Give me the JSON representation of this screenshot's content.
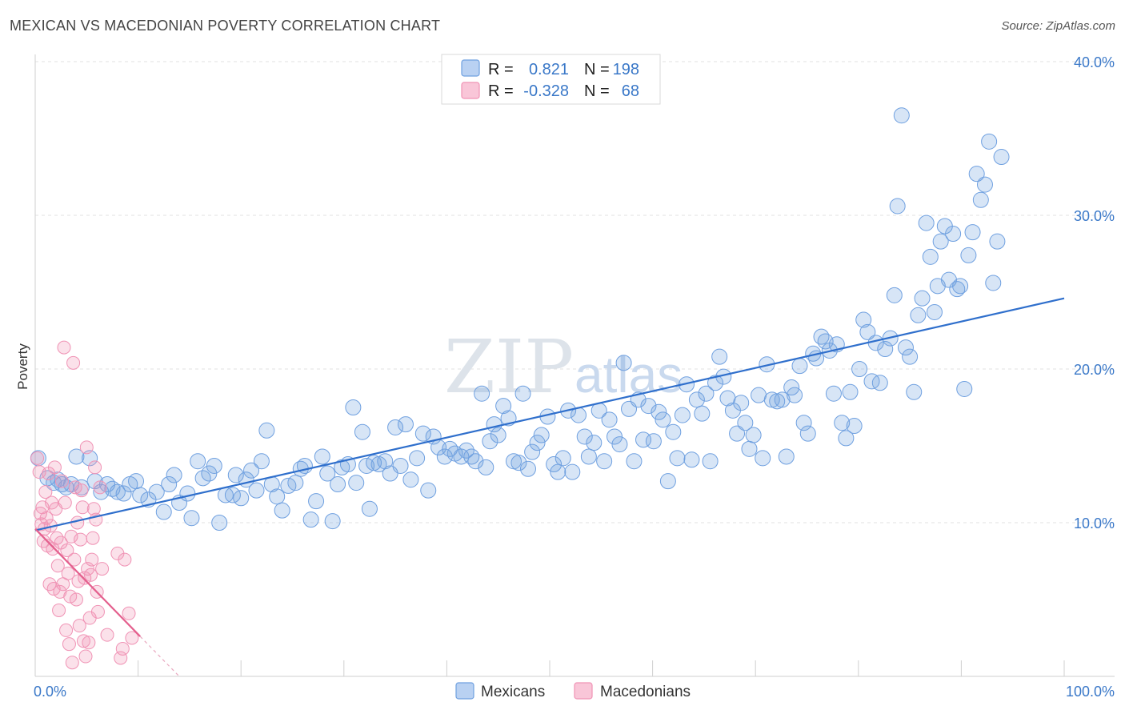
{
  "header": {
    "title": "MEXICAN VS MACEDONIAN POVERTY CORRELATION CHART",
    "source": "Source: ZipAtlas.com"
  },
  "watermark": {
    "zip": "ZIP",
    "atlas": "atlas"
  },
  "legend_top": {
    "rows": [
      {
        "r_label": "R =",
        "r_value": "0.821",
        "n_label": "N =",
        "n_value": "198",
        "color": "#6fa0e0"
      },
      {
        "r_label": "R =",
        "r_value": "-0.328",
        "n_label": "N =",
        "n_value": "68",
        "color": "#f093b5"
      }
    ]
  },
  "legend_bottom": {
    "items": [
      {
        "label": "Mexicans",
        "color": "#6fa0e0"
      },
      {
        "label": "Macedonians",
        "color": "#f093b5"
      }
    ]
  },
  "chart_data": {
    "type": "scatter",
    "title": "MEXICAN VS MACEDONIAN POVERTY CORRELATION CHART",
    "xlabel": "",
    "ylabel": "Poverty",
    "xlim": [
      0,
      100
    ],
    "ylim": [
      0,
      40
    ],
    "x_tick_labels": [
      {
        "value": 0,
        "label": "0.0%"
      },
      {
        "value": 100,
        "label": "100.0%"
      }
    ],
    "y_tick_labels": [
      {
        "value": 10,
        "label": "10.0%"
      },
      {
        "value": 20,
        "label": "20.0%"
      },
      {
        "value": 30,
        "label": "30.0%"
      },
      {
        "value": 40,
        "label": "40.0%"
      }
    ],
    "grid": true,
    "legend_position": "top-center",
    "series": [
      {
        "name": "Mexicans",
        "color": "#6fa0e0",
        "trend": {
          "x": [
            0,
            100
          ],
          "y": [
            9.5,
            24.6
          ]
        },
        "points": [
          [
            0.3,
            14.2
          ],
          [
            1.2,
            12.9
          ],
          [
            1.8,
            12.6
          ],
          [
            2.2,
            12.8
          ],
          [
            2.6,
            12.5
          ],
          [
            3.0,
            12.3
          ],
          [
            3.5,
            12.5
          ],
          [
            4.0,
            14.3
          ],
          [
            4.5,
            12.3
          ],
          [
            5.3,
            14.2
          ],
          [
            5.8,
            12.7
          ],
          [
            6.4,
            12.0
          ],
          [
            7.0,
            12.5
          ],
          [
            7.5,
            12.2
          ],
          [
            8.0,
            12.0
          ],
          [
            8.6,
            11.9
          ],
          [
            9.2,
            12.5
          ],
          [
            9.8,
            12.7
          ],
          [
            10.2,
            11.8
          ],
          [
            11.0,
            11.5
          ],
          [
            11.8,
            12.0
          ],
          [
            12.5,
            10.7
          ],
          [
            13.0,
            12.5
          ],
          [
            13.5,
            13.1
          ],
          [
            14.0,
            11.3
          ],
          [
            14.8,
            11.9
          ],
          [
            15.2,
            10.3
          ],
          [
            15.8,
            14.0
          ],
          [
            16.3,
            12.9
          ],
          [
            16.9,
            13.2
          ],
          [
            17.4,
            13.7
          ],
          [
            17.9,
            10.0
          ],
          [
            18.5,
            11.8
          ],
          [
            19.2,
            11.8
          ],
          [
            19.5,
            13.1
          ],
          [
            20.0,
            11.6
          ],
          [
            20.5,
            12.8
          ],
          [
            21.0,
            13.4
          ],
          [
            21.5,
            12.1
          ],
          [
            22.0,
            14.0
          ],
          [
            22.5,
            16.0
          ],
          [
            23.0,
            12.5
          ],
          [
            23.5,
            11.7
          ],
          [
            24.0,
            10.8
          ],
          [
            24.6,
            12.4
          ],
          [
            25.3,
            12.6
          ],
          [
            25.8,
            13.5
          ],
          [
            26.2,
            13.7
          ],
          [
            26.8,
            10.2
          ],
          [
            27.3,
            11.4
          ],
          [
            27.9,
            14.3
          ],
          [
            28.4,
            13.2
          ],
          [
            28.9,
            10.1
          ],
          [
            29.4,
            12.5
          ],
          [
            29.8,
            13.6
          ],
          [
            30.4,
            13.8
          ],
          [
            30.9,
            17.5
          ],
          [
            31.2,
            12.6
          ],
          [
            31.8,
            15.9
          ],
          [
            32.2,
            13.7
          ],
          [
            32.5,
            10.9
          ],
          [
            32.9,
            13.9
          ],
          [
            33.4,
            13.8
          ],
          [
            34.0,
            14.0
          ],
          [
            34.5,
            13.2
          ],
          [
            35.0,
            16.2
          ],
          [
            35.5,
            13.7
          ],
          [
            36.0,
            16.4
          ],
          [
            36.5,
            12.8
          ],
          [
            37.1,
            14.2
          ],
          [
            37.7,
            15.8
          ],
          [
            38.2,
            12.1
          ],
          [
            38.7,
            15.6
          ],
          [
            39.2,
            14.9
          ],
          [
            39.8,
            14.3
          ],
          [
            40.3,
            14.8
          ],
          [
            40.8,
            14.5
          ],
          [
            41.4,
            14.3
          ],
          [
            41.9,
            14.7
          ],
          [
            42.4,
            14.3
          ],
          [
            42.8,
            14.0
          ],
          [
            43.4,
            18.4
          ],
          [
            43.8,
            13.6
          ],
          [
            44.2,
            15.3
          ],
          [
            44.6,
            16.4
          ],
          [
            45.0,
            15.7
          ],
          [
            45.5,
            17.6
          ],
          [
            46.0,
            16.8
          ],
          [
            46.5,
            14.0
          ],
          [
            47.0,
            13.9
          ],
          [
            47.4,
            18.4
          ],
          [
            47.9,
            13.5
          ],
          [
            48.3,
            14.6
          ],
          [
            48.8,
            15.2
          ],
          [
            49.2,
            15.7
          ],
          [
            49.8,
            16.9
          ],
          [
            50.4,
            13.8
          ],
          [
            50.8,
            13.3
          ],
          [
            51.3,
            14.2
          ],
          [
            51.8,
            17.3
          ],
          [
            52.2,
            13.3
          ],
          [
            52.8,
            17.0
          ],
          [
            53.4,
            15.6
          ],
          [
            53.8,
            14.3
          ],
          [
            54.3,
            15.2
          ],
          [
            54.8,
            17.3
          ],
          [
            55.3,
            14.0
          ],
          [
            55.8,
            16.7
          ],
          [
            56.3,
            15.6
          ],
          [
            56.8,
            15.1
          ],
          [
            57.2,
            20.4
          ],
          [
            57.7,
            17.4
          ],
          [
            58.2,
            14.0
          ],
          [
            58.6,
            18.0
          ],
          [
            59.1,
            15.4
          ],
          [
            59.6,
            17.6
          ],
          [
            60.1,
            15.3
          ],
          [
            60.6,
            17.2
          ],
          [
            61.0,
            16.7
          ],
          [
            61.5,
            12.7
          ],
          [
            62.0,
            15.9
          ],
          [
            62.4,
            14.2
          ],
          [
            62.9,
            17.0
          ],
          [
            63.3,
            19.0
          ],
          [
            63.8,
            14.1
          ],
          [
            64.3,
            18.0
          ],
          [
            64.8,
            17.1
          ],
          [
            65.2,
            18.4
          ],
          [
            65.6,
            14.0
          ],
          [
            66.1,
            19.1
          ],
          [
            66.5,
            20.8
          ],
          [
            66.9,
            19.5
          ],
          [
            67.3,
            18.1
          ],
          [
            67.8,
            17.3
          ],
          [
            68.2,
            15.8
          ],
          [
            68.6,
            17.8
          ],
          [
            69.0,
            16.5
          ],
          [
            69.4,
            14.8
          ],
          [
            69.8,
            15.7
          ],
          [
            70.3,
            18.3
          ],
          [
            70.7,
            14.2
          ],
          [
            71.1,
            20.3
          ],
          [
            71.6,
            18.0
          ],
          [
            72.1,
            17.9
          ],
          [
            72.6,
            18.0
          ],
          [
            73.0,
            14.3
          ],
          [
            73.5,
            18.8
          ],
          [
            73.8,
            18.3
          ],
          [
            74.3,
            20.2
          ],
          [
            74.7,
            16.5
          ],
          [
            75.1,
            15.8
          ],
          [
            75.6,
            21.0
          ],
          [
            75.9,
            20.7
          ],
          [
            76.4,
            22.1
          ],
          [
            76.8,
            21.8
          ],
          [
            77.2,
            21.2
          ],
          [
            77.6,
            18.4
          ],
          [
            77.9,
            21.6
          ],
          [
            78.4,
            16.5
          ],
          [
            78.8,
            15.5
          ],
          [
            79.2,
            18.5
          ],
          [
            79.6,
            16.3
          ],
          [
            80.1,
            20.0
          ],
          [
            80.5,
            23.2
          ],
          [
            80.9,
            22.4
          ],
          [
            81.3,
            19.2
          ],
          [
            81.7,
            21.7
          ],
          [
            82.1,
            19.1
          ],
          [
            82.6,
            21.3
          ],
          [
            83.1,
            22.0
          ],
          [
            83.5,
            24.8
          ],
          [
            83.8,
            30.6
          ],
          [
            84.2,
            36.5
          ],
          [
            84.6,
            21.4
          ],
          [
            85.0,
            20.8
          ],
          [
            85.4,
            18.5
          ],
          [
            85.8,
            23.5
          ],
          [
            86.2,
            24.6
          ],
          [
            86.6,
            29.5
          ],
          [
            87.0,
            27.3
          ],
          [
            87.4,
            23.7
          ],
          [
            87.7,
            25.4
          ],
          [
            88.0,
            28.3
          ],
          [
            88.4,
            29.3
          ],
          [
            88.8,
            25.8
          ],
          [
            89.2,
            28.8
          ],
          [
            89.6,
            25.2
          ],
          [
            89.9,
            25.4
          ],
          [
            90.3,
            18.7
          ],
          [
            90.7,
            27.4
          ],
          [
            91.1,
            28.9
          ],
          [
            91.5,
            32.7
          ],
          [
            91.9,
            31.0
          ],
          [
            92.3,
            32.0
          ],
          [
            92.7,
            34.8
          ],
          [
            93.1,
            25.6
          ],
          [
            93.5,
            28.3
          ],
          [
            93.9,
            33.8
          ]
        ]
      },
      {
        "name": "Macedonians",
        "color": "#f093b5",
        "trend": {
          "x": [
            0,
            10.2
          ],
          "y": [
            9.6,
            2.6
          ]
        },
        "trend_dashed": {
          "x": [
            10.2,
            14.0
          ],
          "y": [
            2.6,
            0
          ]
        },
        "points": [
          [
            0.2,
            14.2
          ],
          [
            0.4,
            13.3
          ],
          [
            0.5,
            10.6
          ],
          [
            0.6,
            9.9
          ],
          [
            0.7,
            11.0
          ],
          [
            0.8,
            8.8
          ],
          [
            0.9,
            9.6
          ],
          [
            1.0,
            12.0
          ],
          [
            1.1,
            10.3
          ],
          [
            1.2,
            8.5
          ],
          [
            1.3,
            13.2
          ],
          [
            1.4,
            6.0
          ],
          [
            1.5,
            9.8
          ],
          [
            1.6,
            11.3
          ],
          [
            1.7,
            8.3
          ],
          [
            1.8,
            5.7
          ],
          [
            1.9,
            13.6
          ],
          [
            2.0,
            10.9
          ],
          [
            2.1,
            9.0
          ],
          [
            2.2,
            7.2
          ],
          [
            2.3,
            4.3
          ],
          [
            2.4,
            5.5
          ],
          [
            2.5,
            8.7
          ],
          [
            2.6,
            12.7
          ],
          [
            2.7,
            6.0
          ],
          [
            2.8,
            21.4
          ],
          [
            2.9,
            11.3
          ],
          [
            3.0,
            3.0
          ],
          [
            3.1,
            8.2
          ],
          [
            3.2,
            6.7
          ],
          [
            3.3,
            2.1
          ],
          [
            3.4,
            5.2
          ],
          [
            3.5,
            9.1
          ],
          [
            3.6,
            0.9
          ],
          [
            3.7,
            20.4
          ],
          [
            3.8,
            7.6
          ],
          [
            3.9,
            12.3
          ],
          [
            4.0,
            5.0
          ],
          [
            4.1,
            10.0
          ],
          [
            4.2,
            6.2
          ],
          [
            4.3,
            3.3
          ],
          [
            4.4,
            8.9
          ],
          [
            4.5,
            12.1
          ],
          [
            4.6,
            11.0
          ],
          [
            4.7,
            2.3
          ],
          [
            4.8,
            6.4
          ],
          [
            4.9,
            1.3
          ],
          [
            5.0,
            14.9
          ],
          [
            5.1,
            7.0
          ],
          [
            5.2,
            2.2
          ],
          [
            5.3,
            3.8
          ],
          [
            5.4,
            6.6
          ],
          [
            5.5,
            7.6
          ],
          [
            5.6,
            9.0
          ],
          [
            5.7,
            10.9
          ],
          [
            5.8,
            13.6
          ],
          [
            5.9,
            10.2
          ],
          [
            6.0,
            5.5
          ],
          [
            6.1,
            4.2
          ],
          [
            6.3,
            12.3
          ],
          [
            6.5,
            7.0
          ],
          [
            7.0,
            2.7
          ],
          [
            8.0,
            8.0
          ],
          [
            8.3,
            1.2
          ],
          [
            8.5,
            1.8
          ],
          [
            8.7,
            7.6
          ],
          [
            9.1,
            4.1
          ],
          [
            9.4,
            2.5
          ]
        ]
      }
    ]
  }
}
